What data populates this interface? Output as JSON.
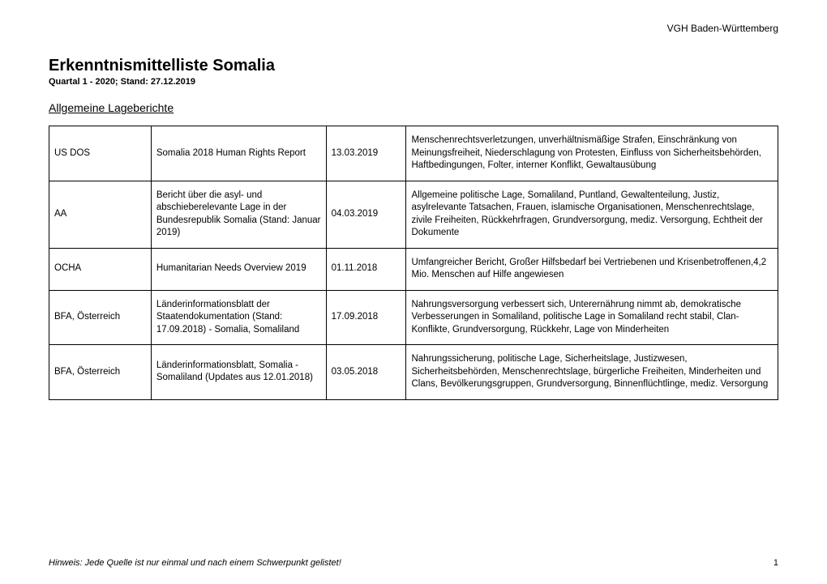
{
  "header": {
    "org": "VGH Baden-Württemberg"
  },
  "title": "Erkenntnismittelliste Somalia",
  "subtitle": "Quartal 1 - 2020; Stand: 27.12.2019",
  "section_heading": "Allgemeine Lageberichte",
  "table": {
    "rows": [
      {
        "source": "US DOS",
        "doc": "Somalia 2018 Human Rights Report",
        "date": "13.03.2019",
        "desc": "Menschenrechtsverletzungen, unverhältnismäßige Strafen, Einschränkung von Meinungsfreiheit, Niederschlagung von Protesten, Einfluss von Sicherheitsbehörden, Haftbedingungen, Folter, interner Konflikt, Gewaltausübung"
      },
      {
        "source": "AA",
        "doc": "Bericht über die asyl- und abschieberelevante Lage in der Bundesrepublik Somalia (Stand: Januar 2019)",
        "date": "04.03.2019",
        "desc": "Allgemeine politische Lage, Somaliland, Puntland, Gewaltenteilung, Justiz, asylrelevante Tatsachen, Frauen, islamische Organisationen, Menschenrechtslage, zivile Freiheiten, Rückkehrfragen, Grundversorgung, mediz. Versorgung, Echtheit der Dokumente"
      },
      {
        "source": "OCHA",
        "doc": "Humanitarian Needs Overview 2019",
        "date": "01.11.2018",
        "desc": "Umfangreicher Bericht, Großer Hilfsbedarf bei Vertriebenen und Krisenbetroffenen,4,2 Mio. Menschen auf Hilfe angewiesen"
      },
      {
        "source": "BFA, Österreich",
        "doc": "Länderinformationsblatt der Staatendokumentation (Stand: 17.09.2018) - Somalia, Somaliland",
        "date": "17.09.2018",
        "desc": "Nahrungsversorgung verbessert sich, Unterernährung nimmt ab, demokratische Verbesserungen in Somaliland, politische Lage in Somaliland recht stabil, Clan-Konflikte, Grundversorgung, Rückkehr, Lage von Minderheiten"
      },
      {
        "source": "BFA, Österreich",
        "doc": "Länderinformationsblatt, Somalia - Somaliland (Updates aus 12.01.2018)",
        "date": "03.05.2018",
        "desc": "Nahrungssicherung, politische Lage, Sicherheitslage, Justizwesen, Sicherheitsbehörden, Menschenrechtslage, bürgerliche Freiheiten, Minderheiten und Clans, Bevölkerungsgruppen, Grundversorgung, Binnenflüchtlinge, mediz. Versorgung"
      }
    ]
  },
  "footer": {
    "note": "Hinweis: Jede Quelle ist nur einmal und nach einem Schwerpunkt gelistet!",
    "page": "1"
  }
}
